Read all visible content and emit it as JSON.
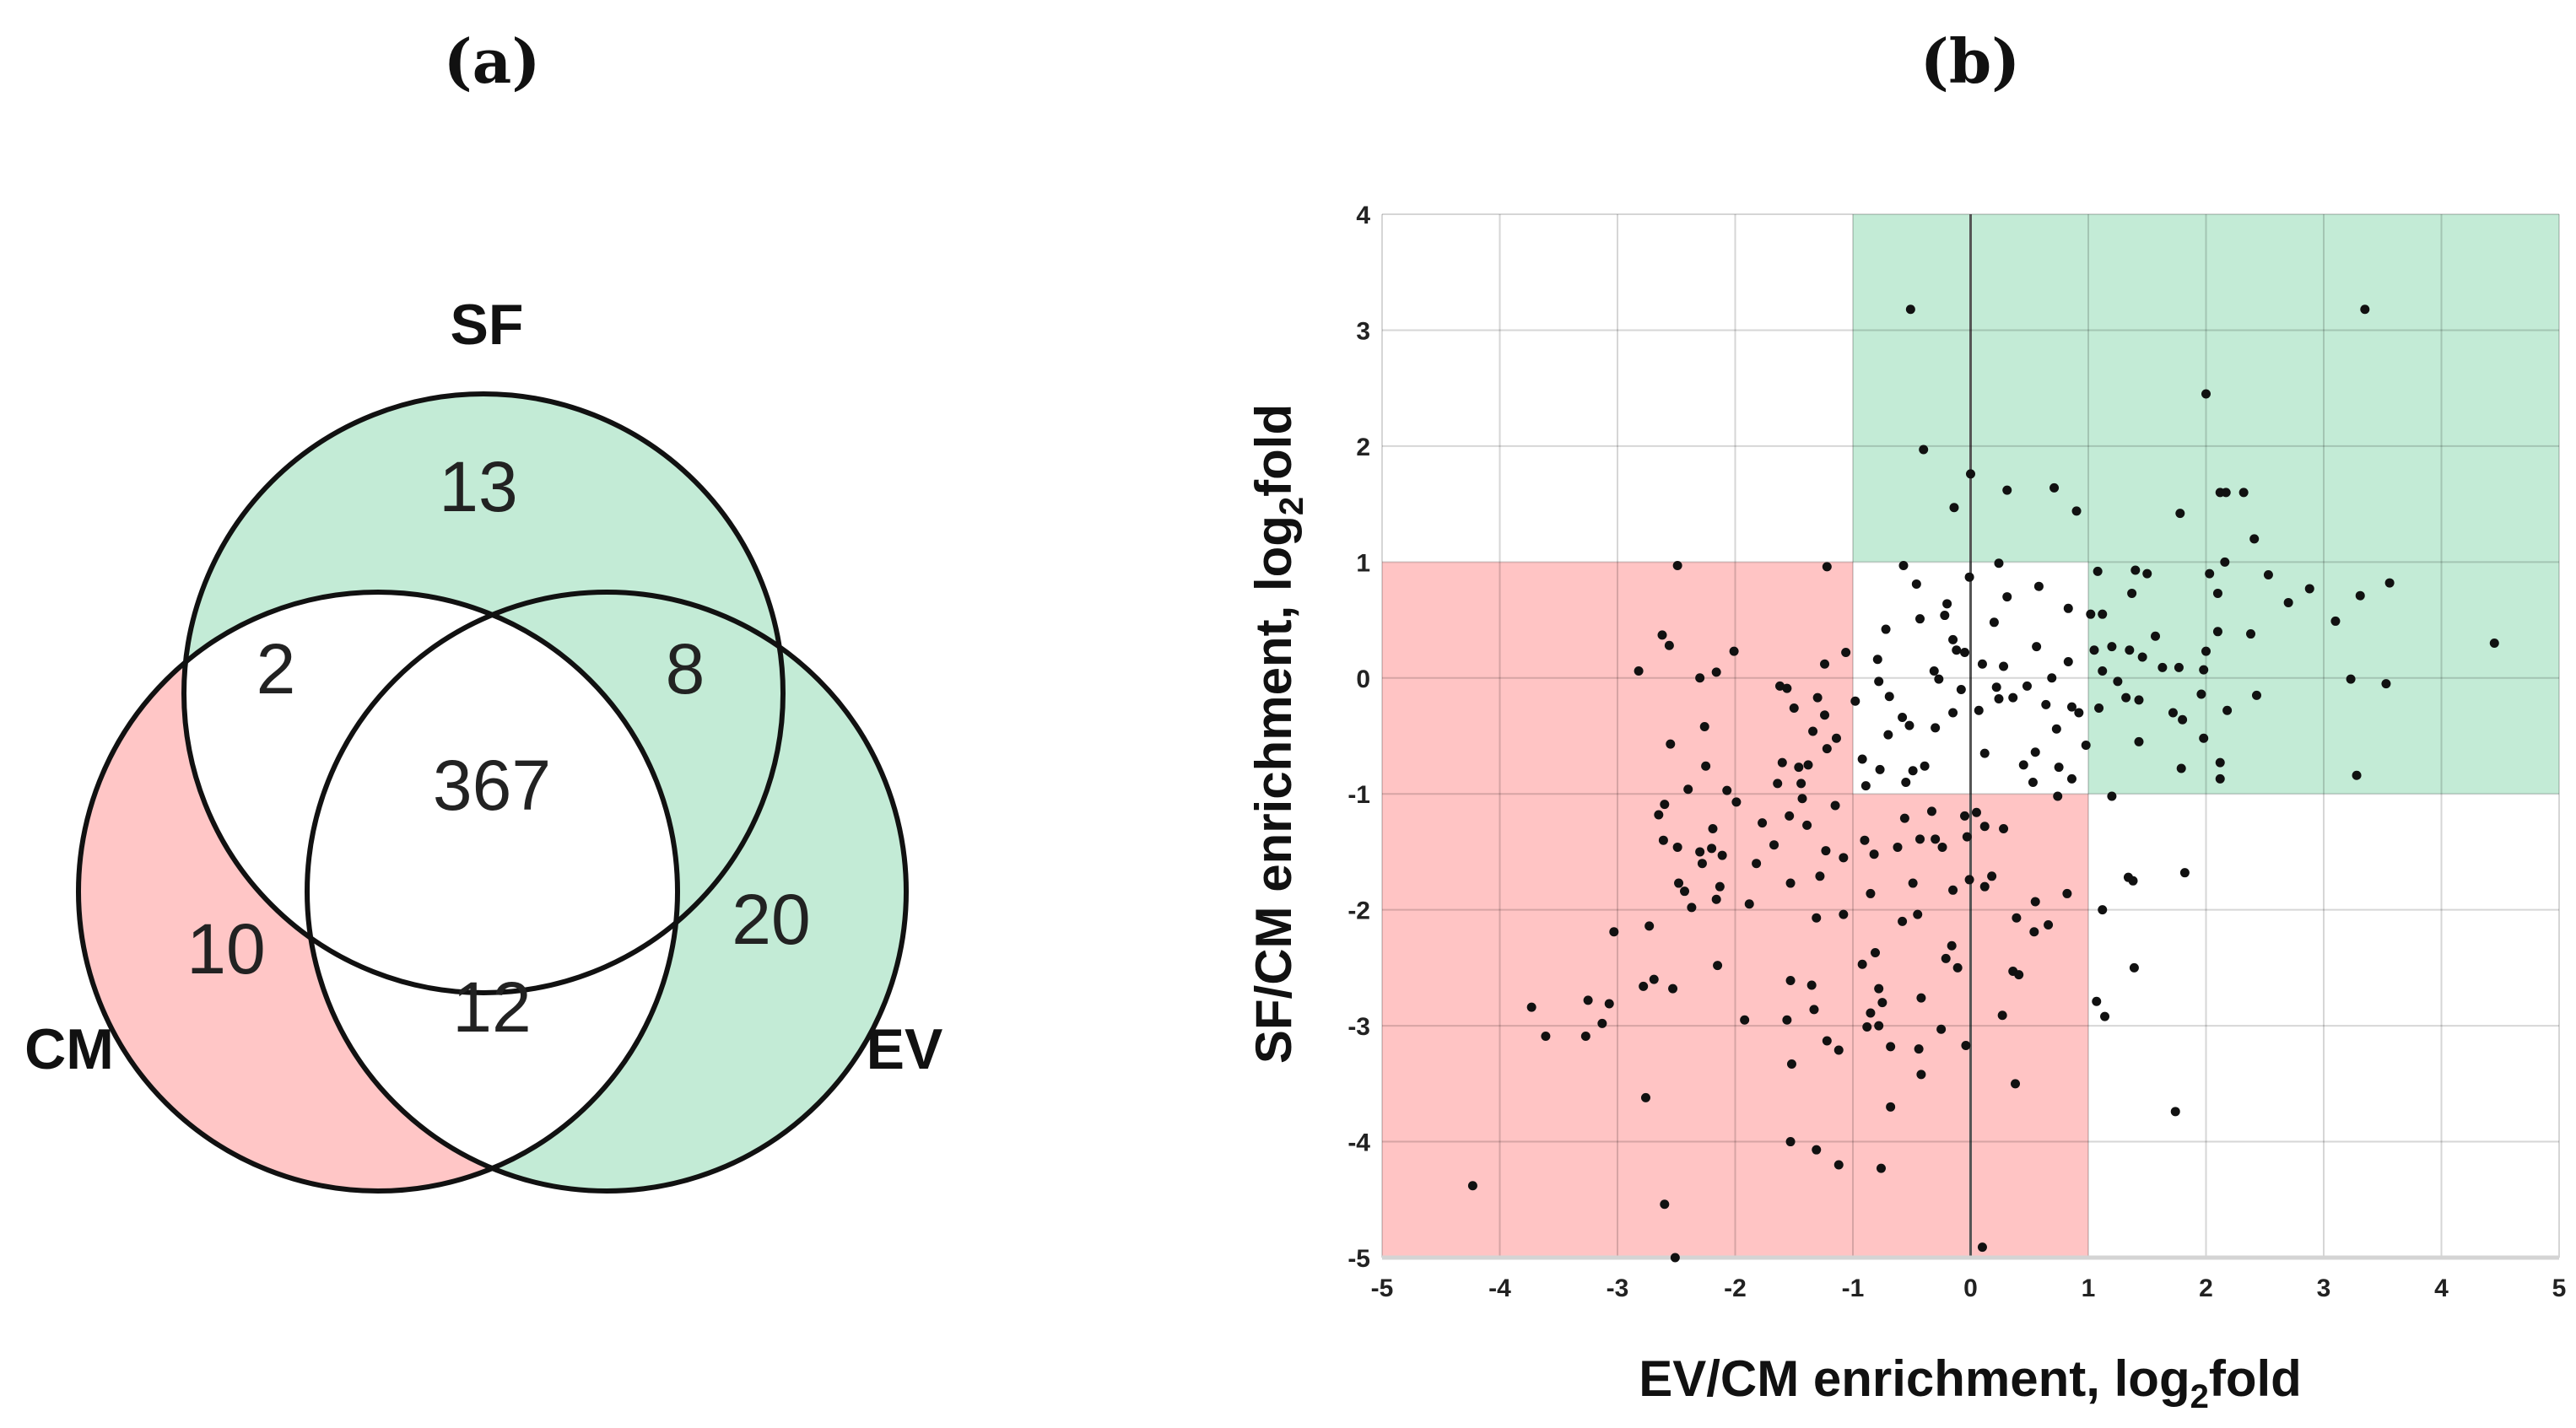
{
  "panel_a": {
    "title": "(a)",
    "sets": {
      "sf": "SF",
      "cm": "CM",
      "ev": "EV"
    },
    "regions": {
      "sf_only": "13",
      "sf_cm": "2",
      "sf_ev": "8",
      "all": "367",
      "cm_only": "10",
      "ev_only": "20",
      "cm_ev": "12"
    },
    "colors": {
      "green": "#c3ebd6",
      "red": "#ffc6c6",
      "stroke": "#111111"
    }
  },
  "panel_b": {
    "title": "(b)"
  },
  "chart_data": {
    "type": "scatter",
    "title": "(b)",
    "xlabel": "EV/CM enrichment, log2fold",
    "xlabel_main": "EV/CM enrichment, log",
    "xlabel_sub": "2",
    "xlabel_tail": "fold",
    "ylabel": "SF/CM enrichment, log2fold",
    "ylabel_main": "SF/CM enrichment, log",
    "ylabel_sub": "2",
    "ylabel_tail": "fold",
    "xlim": [
      -5,
      5
    ],
    "ylim": [
      -5,
      4
    ],
    "xticks": [
      -5,
      -4,
      -3,
      -2,
      -1,
      0,
      1,
      2,
      3,
      4,
      5
    ],
    "yticks": [
      4,
      3,
      2,
      1,
      0,
      -1,
      -2,
      -3,
      -4,
      -5
    ],
    "grid": true,
    "shaded_regions": [
      {
        "name": "cm-enriched",
        "x": [
          -5,
          1
        ],
        "y": [
          -5,
          1
        ],
        "color": "#ffc4c4"
      },
      {
        "name": "ev-sf-enriched",
        "x": [
          -1,
          5
        ],
        "y": [
          -1,
          4
        ],
        "color": "#c3ebd6"
      },
      {
        "name": "neutral",
        "x": [
          -1,
          1
        ],
        "y": [
          -1,
          1
        ],
        "color": "#ffffff"
      }
    ],
    "point_color": "#111111",
    "points": [
      [
        -0.51,
        3.18
      ],
      [
        3.35,
        3.18
      ],
      [
        2.0,
        2.45
      ],
      [
        -0.4,
        1.97
      ],
      [
        0.0,
        1.76
      ],
      [
        -0.14,
        1.47
      ],
      [
        0.31,
        1.62
      ],
      [
        0.71,
        1.64
      ],
      [
        0.9,
        1.44
      ],
      [
        1.78,
        1.42
      ],
      [
        2.12,
        1.6
      ],
      [
        2.17,
        1.6
      ],
      [
        2.32,
        1.6
      ],
      [
        2.41,
        1.2
      ],
      [
        1.08,
        0.92
      ],
      [
        1.4,
        0.93
      ],
      [
        1.5,
        0.9
      ],
      [
        2.03,
        0.9
      ],
      [
        2.16,
        1.0
      ],
      [
        2.53,
        0.89
      ],
      [
        2.88,
        0.77
      ],
      [
        3.31,
        0.71
      ],
      [
        3.56,
        0.82
      ],
      [
        2.7,
        0.65
      ],
      [
        3.1,
        0.49
      ],
      [
        4.45,
        0.3
      ],
      [
        3.23,
        -0.01
      ],
      [
        3.53,
        -0.05
      ],
      [
        2.43,
        -0.15
      ],
      [
        3.28,
        -0.84
      ],
      [
        2.38,
        0.38
      ],
      [
        2.1,
        0.4
      ],
      [
        2.0,
        0.23
      ],
      [
        1.98,
        0.07
      ],
      [
        1.96,
        -0.14
      ],
      [
        1.98,
        -0.52
      ],
      [
        2.18,
        -0.28
      ],
      [
        2.12,
        -0.73
      ],
      [
        2.12,
        -0.87
      ],
      [
        1.79,
        -0.78
      ],
      [
        1.72,
        -0.3
      ],
      [
        1.8,
        -0.36
      ],
      [
        1.57,
        0.36
      ],
      [
        1.46,
        0.18
      ],
      [
        1.35,
        0.24
      ],
      [
        1.2,
        0.27
      ],
      [
        1.05,
        0.24
      ],
      [
        1.12,
        0.06
      ],
      [
        1.25,
        -0.03
      ],
      [
        1.32,
        -0.17
      ],
      [
        1.43,
        -0.19
      ],
      [
        1.09,
        -0.26
      ],
      [
        1.43,
        -0.55
      ],
      [
        1.37,
        0.73
      ],
      [
        2.1,
        0.73
      ],
      [
        1.77,
        0.09
      ],
      [
        1.63,
        0.09
      ],
      [
        1.02,
        0.55
      ],
      [
        1.12,
        0.55
      ],
      [
        0.98,
        -0.58
      ],
      [
        -0.57,
        0.97
      ],
      [
        -0.46,
        0.81
      ],
      [
        -0.01,
        0.87
      ],
      [
        0.24,
        0.99
      ],
      [
        0.31,
        0.7
      ],
      [
        0.58,
        0.79
      ],
      [
        0.83,
        0.6
      ],
      [
        -0.72,
        0.42
      ],
      [
        -0.43,
        0.51
      ],
      [
        -0.22,
        0.54
      ],
      [
        0.2,
        0.48
      ],
      [
        -0.2,
        0.64
      ],
      [
        -0.15,
        0.33
      ],
      [
        -0.12,
        0.24
      ],
      [
        -0.05,
        0.22
      ],
      [
        0.1,
        0.12
      ],
      [
        0.28,
        0.1
      ],
      [
        0.56,
        0.27
      ],
      [
        -0.79,
        0.16
      ],
      [
        -0.78,
        -0.03
      ],
      [
        -0.31,
        0.06
      ],
      [
        -0.27,
        -0.01
      ],
      [
        -0.08,
        -0.1
      ],
      [
        0.22,
        -0.08
      ],
      [
        0.24,
        -0.18
      ],
      [
        0.48,
        -0.07
      ],
      [
        0.69,
        0.0
      ],
      [
        0.83,
        0.14
      ],
      [
        -0.98,
        -0.2
      ],
      [
        -0.69,
        -0.16
      ],
      [
        -0.58,
        -0.34
      ],
      [
        -0.52,
        -0.41
      ],
      [
        -0.3,
        -0.43
      ],
      [
        -0.15,
        -0.3
      ],
      [
        0.07,
        -0.28
      ],
      [
        0.36,
        -0.17
      ],
      [
        0.64,
        -0.23
      ],
      [
        0.86,
        -0.25
      ],
      [
        0.92,
        -0.3
      ],
      [
        -0.7,
        -0.49
      ],
      [
        -0.92,
        -0.7
      ],
      [
        -0.77,
        -0.79
      ],
      [
        -0.49,
        -0.8
      ],
      [
        -0.39,
        -0.76
      ],
      [
        0.12,
        -0.65
      ],
      [
        0.45,
        -0.75
      ],
      [
        0.55,
        -0.64
      ],
      [
        0.73,
        -0.44
      ],
      [
        0.75,
        -0.77
      ],
      [
        0.86,
        -0.87
      ],
      [
        0.53,
        -0.9
      ],
      [
        -0.55,
        -0.9
      ],
      [
        -0.89,
        -0.93
      ],
      [
        0.74,
        -1.02
      ],
      [
        1.2,
        -1.02
      ],
      [
        1.12,
        -2.0
      ],
      [
        1.34,
        -1.72
      ],
      [
        1.38,
        -1.75
      ],
      [
        1.82,
        -1.68
      ],
      [
        1.39,
        -2.5
      ],
      [
        1.07,
        -2.79
      ],
      [
        1.14,
        -2.92
      ],
      [
        1.74,
        -3.74
      ],
      [
        -2.49,
        0.97
      ],
      [
        -1.22,
        0.96
      ],
      [
        -2.62,
        0.37
      ],
      [
        -2.56,
        0.28
      ],
      [
        -2.82,
        0.06
      ],
      [
        -2.3,
        0.0
      ],
      [
        -2.16,
        0.05
      ],
      [
        -2.01,
        0.23
      ],
      [
        -1.62,
        -0.07
      ],
      [
        -1.56,
        -0.09
      ],
      [
        -1.3,
        -0.17
      ],
      [
        -1.06,
        0.22
      ],
      [
        -1.24,
        0.12
      ],
      [
        -1.5,
        -0.26
      ],
      [
        -2.26,
        -0.42
      ],
      [
        -2.55,
        -0.57
      ],
      [
        -1.34,
        -0.46
      ],
      [
        -1.24,
        -0.32
      ],
      [
        -1.14,
        -0.52
      ],
      [
        -1.22,
        -0.61
      ],
      [
        -2.25,
        -0.76
      ],
      [
        -1.6,
        -0.73
      ],
      [
        -1.46,
        -0.77
      ],
      [
        -1.38,
        -0.75
      ],
      [
        -1.64,
        -0.91
      ],
      [
        -1.44,
        -0.91
      ],
      [
        -2.4,
        -0.96
      ],
      [
        -2.07,
        -0.97
      ],
      [
        -1.43,
        -1.04
      ],
      [
        -1.99,
        -1.07
      ],
      [
        -2.6,
        -1.09
      ],
      [
        -2.65,
        -1.18
      ],
      [
        -1.77,
        -1.25
      ],
      [
        -1.54,
        -1.19
      ],
      [
        -1.39,
        -1.27
      ],
      [
        -1.15,
        -1.1
      ],
      [
        -2.19,
        -1.3
      ],
      [
        -1.67,
        -1.44
      ],
      [
        -2.61,
        -1.4
      ],
      [
        -2.49,
        -1.46
      ],
      [
        -2.3,
        -1.5
      ],
      [
        -2.2,
        -1.47
      ],
      [
        -2.11,
        -1.53
      ],
      [
        -2.28,
        -1.6
      ],
      [
        -1.82,
        -1.6
      ],
      [
        -1.23,
        -1.49
      ],
      [
        -1.08,
        -1.55
      ],
      [
        -0.9,
        -1.4
      ],
      [
        -0.82,
        -1.52
      ],
      [
        -0.62,
        -1.46
      ],
      [
        -0.43,
        -1.39
      ],
      [
        -0.3,
        -1.39
      ],
      [
        -0.24,
        -1.46
      ],
      [
        -0.56,
        -1.21
      ],
      [
        -0.33,
        -1.15
      ],
      [
        -0.05,
        -1.19
      ],
      [
        0.05,
        -1.16
      ],
      [
        0.12,
        -1.28
      ],
      [
        0.28,
        -1.3
      ],
      [
        -0.03,
        -1.37
      ],
      [
        -2.48,
        -1.77
      ],
      [
        -2.43,
        -1.84
      ],
      [
        -2.13,
        -1.8
      ],
      [
        -1.88,
        -1.95
      ],
      [
        -2.37,
        -1.98
      ],
      [
        -2.16,
        -1.91
      ],
      [
        -1.53,
        -1.77
      ],
      [
        -1.28,
        -1.71
      ],
      [
        -1.08,
        -2.04
      ],
      [
        -1.31,
        -2.07
      ],
      [
        -0.85,
        -1.86
      ],
      [
        -0.58,
        -2.1
      ],
      [
        -0.45,
        -2.04
      ],
      [
        -0.49,
        -1.77
      ],
      [
        -0.15,
        -1.83
      ],
      [
        -0.01,
        -1.74
      ],
      [
        0.18,
        -1.71
      ],
      [
        0.12,
        -1.8
      ],
      [
        0.55,
        -1.93
      ],
      [
        0.82,
        -1.86
      ],
      [
        0.39,
        -2.07
      ],
      [
        0.54,
        -2.19
      ],
      [
        0.66,
        -2.13
      ],
      [
        -3.03,
        -2.19
      ],
      [
        -2.73,
        -2.14
      ],
      [
        -2.15,
        -2.48
      ],
      [
        -0.92,
        -2.47
      ],
      [
        -0.81,
        -2.37
      ],
      [
        -0.16,
        -2.31
      ],
      [
        -0.21,
        -2.42
      ],
      [
        -0.11,
        -2.5
      ],
      [
        0.36,
        -2.53
      ],
      [
        0.41,
        -2.56
      ],
      [
        -2.78,
        -2.66
      ],
      [
        -2.69,
        -2.6
      ],
      [
        -2.53,
        -2.68
      ],
      [
        -1.53,
        -2.61
      ],
      [
        -1.35,
        -2.65
      ],
      [
        -0.78,
        -2.68
      ],
      [
        -0.42,
        -2.76
      ],
      [
        -3.73,
        -2.84
      ],
      [
        -3.25,
        -2.78
      ],
      [
        -3.07,
        -2.81
      ],
      [
        -3.61,
        -3.09
      ],
      [
        -3.27,
        -3.09
      ],
      [
        -3.13,
        -2.98
      ],
      [
        -1.92,
        -2.95
      ],
      [
        -1.56,
        -2.95
      ],
      [
        -1.33,
        -2.86
      ],
      [
        -0.85,
        -2.89
      ],
      [
        -0.75,
        -2.8
      ],
      [
        -0.88,
        -3.01
      ],
      [
        -0.78,
        -3.0
      ],
      [
        -0.25,
        -3.03
      ],
      [
        0.27,
        -2.91
      ],
      [
        -1.22,
        -3.13
      ],
      [
        -1.12,
        -3.21
      ],
      [
        -0.68,
        -3.18
      ],
      [
        -0.44,
        -3.2
      ],
      [
        -0.04,
        -3.17
      ],
      [
        -1.52,
        -3.33
      ],
      [
        -0.42,
        -3.42
      ],
      [
        0.38,
        -3.5
      ],
      [
        -2.76,
        -3.62
      ],
      [
        -0.68,
        -3.7
      ],
      [
        -1.53,
        -4.0
      ],
      [
        -1.31,
        -4.07
      ],
      [
        -1.12,
        -4.2
      ],
      [
        -0.76,
        -4.23
      ],
      [
        -4.23,
        -4.38
      ],
      [
        -2.6,
        -4.54
      ],
      [
        -2.51,
        -5.0
      ],
      [
        0.1,
        -4.91
      ]
    ]
  }
}
